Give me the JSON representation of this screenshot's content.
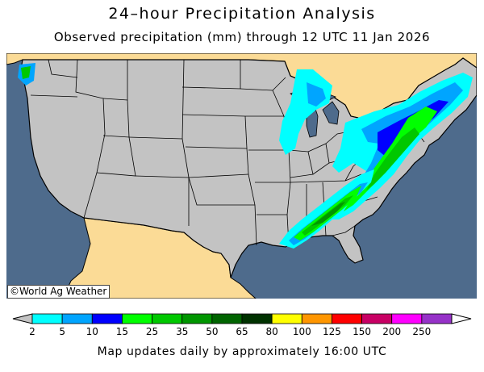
{
  "header": {
    "title": "24–hour Precipitation Analysis",
    "subtitle": "Observed precipitation (mm) through 12 UTC 11 Jan 2026"
  },
  "map": {
    "credit": "©World Ag Weather",
    "colors": {
      "ocean": "#4e6b8c",
      "land_us": "#c3c3c3",
      "land_foreign": "#fbdb96",
      "border": "#000000"
    },
    "precip_regions": [
      {
        "name": "pacific-northwest",
        "band_mm": "5-15"
      },
      {
        "name": "upper-great-lakes",
        "band_mm": "2-10"
      },
      {
        "name": "ohio-valley-northeast",
        "band_mm": "2-25"
      },
      {
        "name": "mid-atlantic",
        "band_mm": "15-35"
      },
      {
        "name": "deep-south-band",
        "band_mm": "10-50"
      }
    ]
  },
  "legend": {
    "labels": [
      "2",
      "5",
      "10",
      "15",
      "25",
      "35",
      "50",
      "65",
      "80",
      "100",
      "125",
      "150",
      "200",
      "250"
    ],
    "colors": [
      "#00ffff",
      "#00a5ff",
      "#0000ff",
      "#00ff00",
      "#00c800",
      "#009600",
      "#006400",
      "#003200",
      "#ffff00",
      "#ff9600",
      "#ff0000",
      "#c80064",
      "#ff00ff",
      "#9632c8"
    ]
  },
  "footer": "Map updates daily by approximately 16:00 UTC"
}
